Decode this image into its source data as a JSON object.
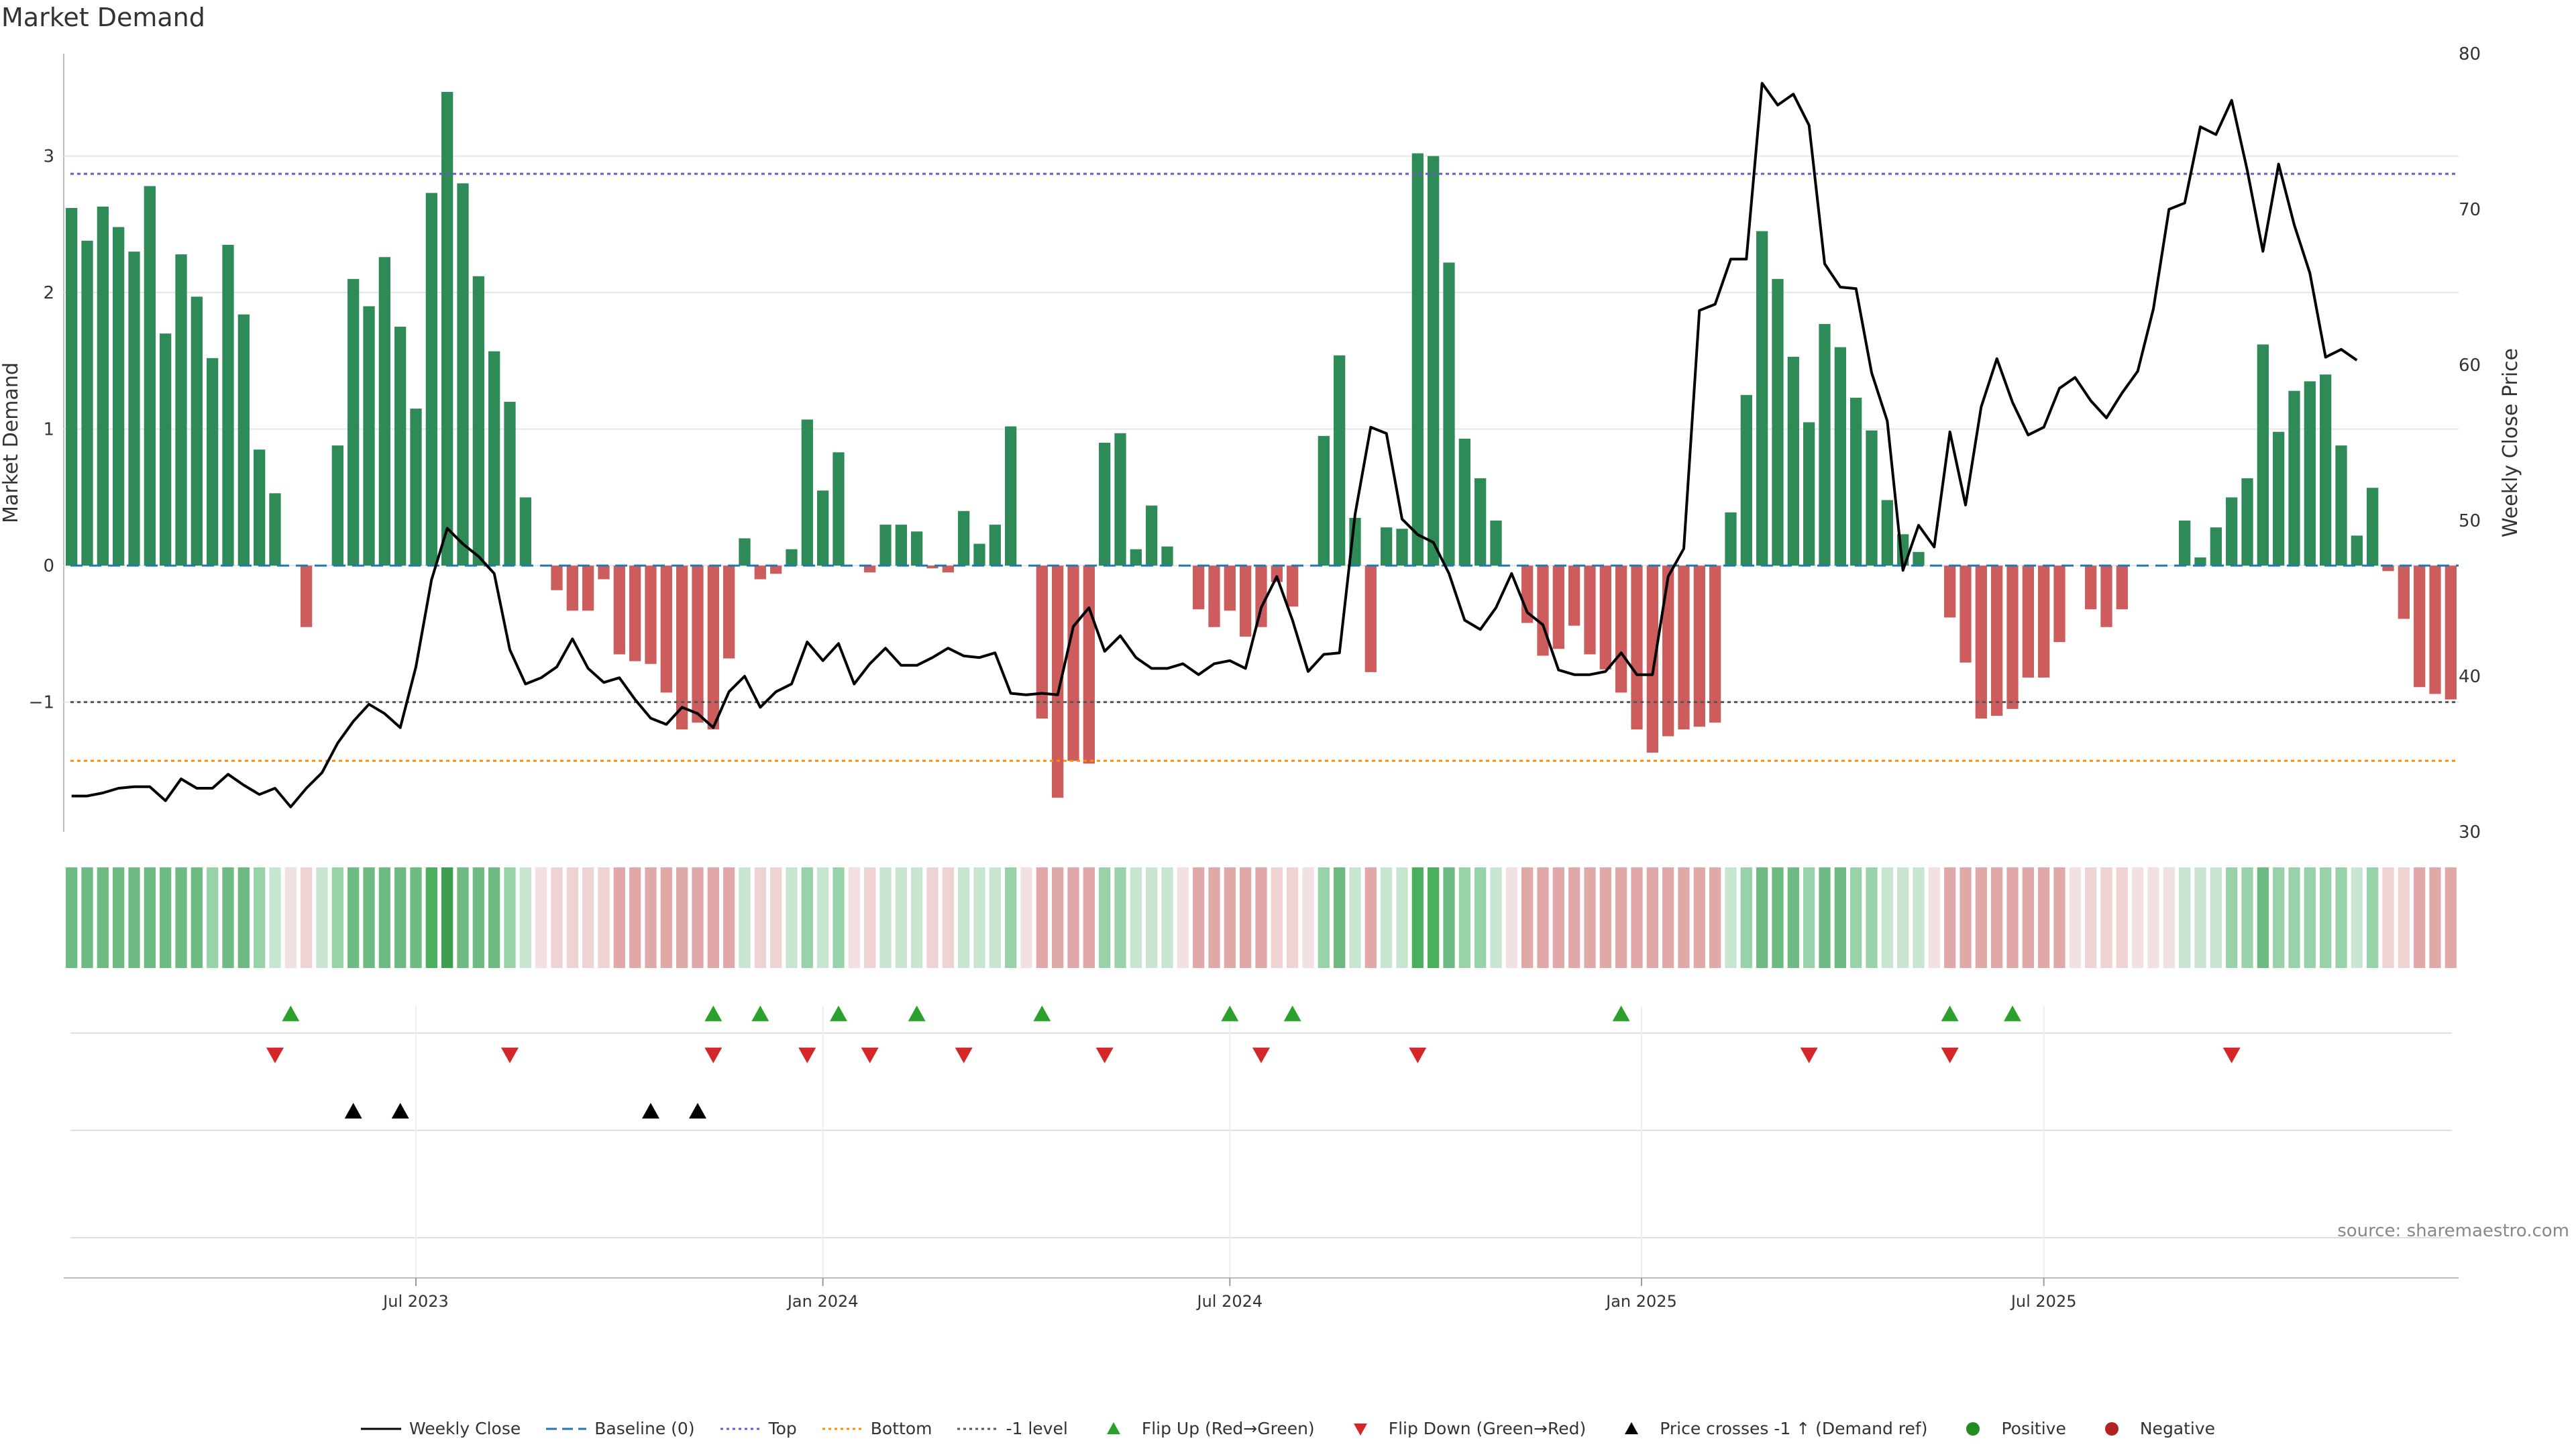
{
  "title": "Market Demand",
  "source": "source: sharemaestro.com",
  "colors": {
    "pos": "#2e8b57",
    "neg": "#cd5c5c",
    "price": "#000000",
    "baseline": "#1f77b4",
    "top": "#6a5acd",
    "bottom": "#ff8c00",
    "minus1": "#555555",
    "flip_up": "#2ca02c",
    "flip_down": "#d62728",
    "cross": "#000000",
    "grid": "#e6e6e6"
  },
  "legend": [
    {
      "label": "Weekly Close",
      "sym": "line-solid",
      "color": "#000000"
    },
    {
      "label": "Baseline (0)",
      "sym": "line-dash",
      "color": "#1f77b4"
    },
    {
      "label": "Top",
      "sym": "line-dot",
      "color": "#6a5acd"
    },
    {
      "label": "Bottom",
      "sym": "line-dot",
      "color": "#ff8c00"
    },
    {
      "label": "-1 level",
      "sym": "line-dot",
      "color": "#555555"
    },
    {
      "label": "Flip Up (Red→Green)",
      "sym": "tri-up",
      "color": "#2ca02c"
    },
    {
      "label": "Flip Down (Green→Red)",
      "sym": "tri-down",
      "color": "#d62728"
    },
    {
      "label": "Price crosses -1 ↑ (Demand ref)",
      "sym": "tri-up",
      "color": "#000000"
    },
    {
      "label": "Positive",
      "sym": "dot",
      "color": "#228b22"
    },
    {
      "label": "Negative",
      "sym": "dot",
      "color": "#b22222"
    }
  ],
  "chart_data": {
    "type": "bar",
    "ylabel": "Market Demand",
    "y2label": "Weekly Close Price",
    "ylim": [
      -1.95,
      3.75
    ],
    "y2lim": [
      30,
      80
    ],
    "yticks": [
      -1,
      0,
      1,
      2,
      3
    ],
    "y2ticks": [
      30,
      40,
      50,
      60,
      70,
      80
    ],
    "ref_lines": {
      "baseline": 0,
      "top": 2.87,
      "bottom": -1.43,
      "minus1": -1
    },
    "x_tick_labels": [
      {
        "label": "Jul 2023",
        "index": 22
      },
      {
        "label": "Jan 2024",
        "index": 48
      },
      {
        "label": "Jul 2024",
        "index": 74
      },
      {
        "label": "Jan 2025",
        "index": 100.3
      },
      {
        "label": "Jul 2025",
        "index": 126
      }
    ],
    "demand": [
      2.62,
      2.38,
      2.63,
      2.48,
      2.3,
      2.78,
      1.7,
      2.28,
      1.97,
      1.52,
      2.35,
      1.84,
      0.85,
      0.53,
      0,
      -0.45,
      0,
      0.88,
      2.1,
      1.9,
      2.26,
      1.75,
      1.15,
      2.73,
      3.47,
      2.8,
      2.12,
      1.57,
      1.2,
      0.5,
      0,
      -0.18,
      -0.33,
      -0.33,
      -0.1,
      -0.65,
      -0.7,
      -0.72,
      -0.93,
      -1.2,
      -1.15,
      -1.2,
      -0.68,
      0.2,
      -0.1,
      -0.06,
      0.12,
      1.07,
      0.55,
      0.83,
      0,
      -0.05,
      0.3,
      0.3,
      0.25,
      -0.02,
      -0.05,
      0.4,
      0.16,
      0.3,
      1.02,
      0,
      -1.12,
      -1.7,
      -1.43,
      -1.45,
      0.9,
      0.97,
      0.12,
      0.44,
      0.14,
      0,
      -0.32,
      -0.45,
      -0.33,
      -0.52,
      -0.45,
      -0.12,
      -0.3,
      0,
      0.95,
      1.54,
      0.35,
      -0.78,
      0.28,
      0.27,
      3.02,
      3.0,
      2.22,
      0.93,
      0.64,
      0.33,
      0,
      -0.42,
      -0.66,
      -0.61,
      -0.44,
      -0.65,
      -0.76,
      -0.93,
      -1.2,
      -1.37,
      -1.25,
      -1.2,
      -1.18,
      -1.15,
      0.39,
      1.25,
      2.45,
      2.1,
      1.53,
      1.05,
      1.77,
      1.6,
      1.23,
      0.99,
      0.48,
      0.23,
      0.1,
      0,
      -0.38,
      -0.71,
      -1.12,
      -1.1,
      -1.05,
      -0.82,
      -0.82,
      -0.56,
      0,
      -0.32,
      -0.45,
      -0.32,
      0,
      0,
      0,
      0.33,
      0.06,
      0.28,
      0.5,
      0.64,
      1.62,
      0.98,
      1.28,
      1.35,
      1.4,
      0.88,
      0.22,
      0.57,
      -0.04,
      -0.39,
      -0.89,
      -0.94,
      -0.98
    ],
    "close": [
      32.3,
      32.3,
      32.5,
      32.8,
      32.9,
      32.9,
      32.0,
      33.4,
      32.8,
      32.8,
      33.7,
      33.0,
      32.4,
      32.8,
      31.6,
      32.8,
      33.8,
      35.7,
      37.1,
      38.2,
      37.6,
      36.7,
      40.6,
      46.2,
      49.5,
      48.5,
      47.7,
      46.6,
      41.7,
      39.5,
      39.9,
      40.6,
      42.4,
      40.5,
      39.6,
      39.9,
      38.5,
      37.3,
      36.9,
      38.0,
      37.6,
      36.7,
      39.0,
      40.0,
      38.0,
      39.0,
      39.5,
      42.2,
      41.0,
      42.1,
      39.5,
      40.8,
      41.8,
      40.7,
      40.7,
      41.2,
      41.8,
      41.3,
      41.2,
      41.5,
      38.9,
      38.8,
      38.9,
      38.8,
      43.2,
      44.4,
      41.6,
      42.6,
      41.2,
      40.5,
      40.5,
      40.8,
      40.1,
      40.8,
      41.0,
      40.5,
      44.4,
      46.4,
      43.6,
      40.3,
      41.4,
      41.5,
      50.4,
      56.0,
      55.6,
      50.1,
      49.1,
      48.6,
      46.6,
      43.6,
      43.0,
      44.4,
      46.6,
      44.1,
      43.3,
      40.4,
      40.1,
      40.1,
      40.3,
      41.5,
      40.1,
      40.1,
      46.4,
      48.2,
      63.5,
      63.9,
      66.8,
      66.8,
      78.1,
      76.7,
      77.4,
      75.4,
      66.5,
      65.0,
      64.9,
      59.5,
      56.4,
      46.8,
      49.7,
      48.3,
      55.7,
      51.0,
      57.3,
      60.4,
      57.6,
      55.5,
      56.0,
      58.5,
      59.2,
      57.7,
      56.6,
      58.2,
      59.6,
      63.6,
      70.0,
      70.4,
      75.3,
      74.8,
      77.0,
      72.5,
      67.3,
      72.9,
      69.0,
      65.9,
      60.5,
      61.0,
      60.3
    ],
    "strip_levels": [
      3,
      3,
      3,
      3,
      3,
      3,
      3,
      3,
      3,
      2,
      3,
      3,
      2,
      1,
      0,
      -1,
      1,
      2,
      3,
      3,
      3,
      3,
      3,
      4,
      5,
      3,
      3,
      3,
      2,
      1,
      0,
      -1,
      -1,
      -1,
      -1,
      -2,
      -2,
      -2,
      -2,
      -2,
      -2,
      -2,
      -2,
      1,
      -1,
      -1,
      1,
      2,
      1,
      2,
      0,
      -1,
      1,
      1,
      1,
      -1,
      -1,
      1,
      1,
      1,
      2,
      0,
      -2,
      -2,
      -2,
      -2,
      2,
      2,
      1,
      1,
      1,
      0,
      -2,
      -2,
      -2,
      -2,
      -2,
      -1,
      -1,
      0,
      2,
      3,
      1,
      -2,
      1,
      1,
      4,
      4,
      3,
      2,
      2,
      1,
      0,
      -2,
      -2,
      -2,
      -2,
      -2,
      -2,
      -2,
      -2,
      -2,
      -2,
      -2,
      -2,
      -2,
      1,
      2,
      3,
      3,
      3,
      2,
      3,
      3,
      2,
      2,
      1,
      1,
      1,
      0,
      -2,
      -2,
      -2,
      -2,
      -2,
      -2,
      -2,
      -2,
      0,
      -1,
      -1,
      -1,
      0,
      0,
      0,
      1,
      1,
      1,
      2,
      2,
      3,
      2,
      2,
      2,
      2,
      2,
      1,
      2,
      -1,
      -1,
      -2,
      -2,
      -2
    ],
    "flip_up": [
      14,
      41,
      44,
      49,
      54,
      62,
      74,
      78,
      99,
      120,
      124
    ],
    "flip_down": [
      13,
      28,
      41,
      47,
      51,
      57,
      66,
      76,
      86,
      111,
      120,
      138
    ],
    "price_cross": [
      18,
      21,
      37,
      40
    ]
  }
}
